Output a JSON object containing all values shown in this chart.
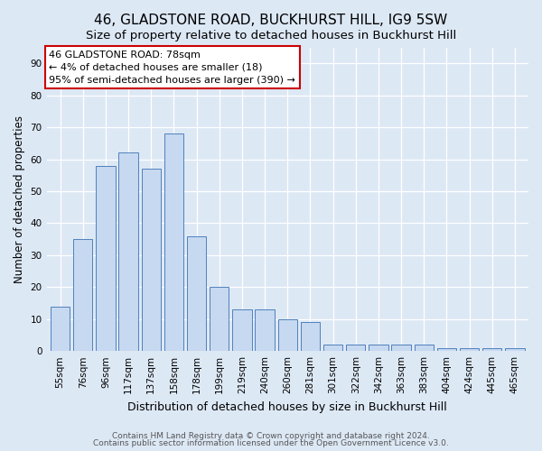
{
  "title": "46, GLADSTONE ROAD, BUCKHURST HILL, IG9 5SW",
  "subtitle": "Size of property relative to detached houses in Buckhurst Hill",
  "xlabel": "Distribution of detached houses by size in Buckhurst Hill",
  "ylabel": "Number of detached properties",
  "categories": [
    "55sqm",
    "76sqm",
    "96sqm",
    "117sqm",
    "137sqm",
    "158sqm",
    "178sqm",
    "199sqm",
    "219sqm",
    "240sqm",
    "260sqm",
    "281sqm",
    "301sqm",
    "322sqm",
    "342sqm",
    "363sqm",
    "383sqm",
    "404sqm",
    "424sqm",
    "445sqm",
    "465sqm"
  ],
  "values": [
    14,
    35,
    58,
    62,
    57,
    68,
    36,
    20,
    13,
    13,
    10,
    9,
    2,
    2,
    2,
    2,
    2,
    1,
    1,
    1,
    1
  ],
  "bar_color": "#c6d9f0",
  "bar_edge_color": "#4f81bd",
  "annotation_line1": "46 GLADSTONE ROAD: 78sqm",
  "annotation_line2": "← 4% of detached houses are smaller (18)",
  "annotation_line3": "95% of semi-detached houses are larger (390) →",
  "annotation_box_edge_color": "#cc0000",
  "ylim": [
    0,
    95
  ],
  "yticks": [
    0,
    10,
    20,
    30,
    40,
    50,
    60,
    70,
    80,
    90
  ],
  "background_color": "#dde8f5",
  "plot_background_color": "#dde8f5",
  "grid_color": "#ffffff",
  "footer_line1": "Contains HM Land Registry data © Crown copyright and database right 2024.",
  "footer_line2": "Contains public sector information licensed under the Open Government Licence v3.0.",
  "title_fontsize": 11,
  "subtitle_fontsize": 9.5,
  "xlabel_fontsize": 9,
  "ylabel_fontsize": 8.5,
  "tick_fontsize": 7.5,
  "annotation_fontsize": 8,
  "footer_fontsize": 6.5
}
